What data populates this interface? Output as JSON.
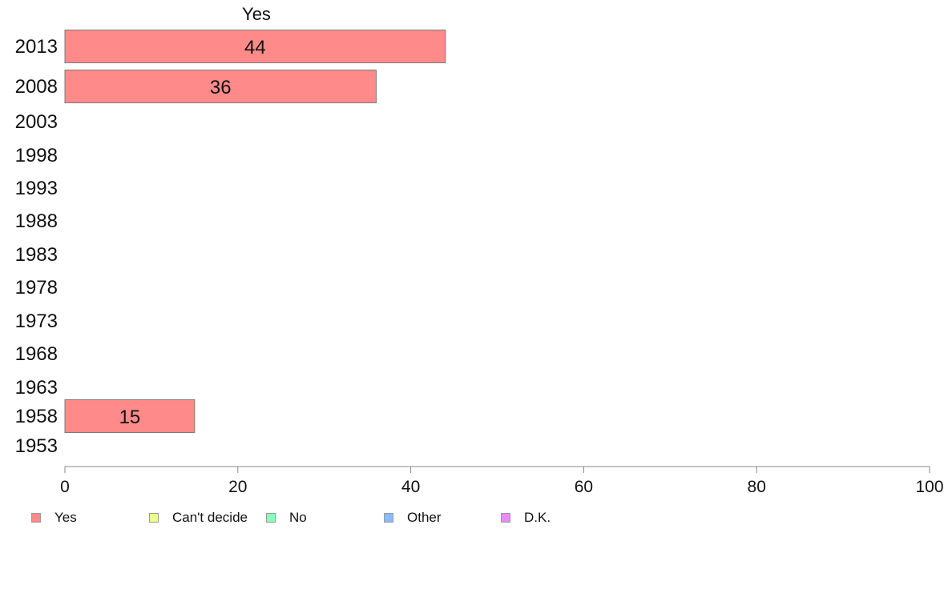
{
  "chart_data": {
    "type": "bar",
    "orientation": "horizontal",
    "title": "Yes",
    "categories": [
      "2013",
      "2008",
      "2003",
      "1998",
      "1993",
      "1988",
      "1983",
      "1978",
      "1973",
      "1968",
      "1963",
      "1958",
      "1953"
    ],
    "series": [
      {
        "name": "Yes",
        "color": "#ff8a8a",
        "values": [
          44,
          36,
          null,
          null,
          null,
          null,
          null,
          null,
          null,
          null,
          null,
          15,
          null
        ]
      }
    ],
    "data_labels": [
      "44",
      "36",
      "",
      "",
      "",
      "",
      "",
      "",
      "",
      "",
      "",
      "15",
      ""
    ],
    "xlim": [
      0,
      100
    ],
    "xticks": [
      "0",
      "20",
      "40",
      "60",
      "80",
      "100"
    ],
    "grid": false,
    "legend_position": "bottom-left"
  },
  "legend": [
    {
      "label": "Yes",
      "color": "#ff8a8a"
    },
    {
      "label": "Can't decide",
      "color": "#eeff88"
    },
    {
      "label": "No",
      "color": "#88ffbb"
    },
    {
      "label": "Other",
      "color": "#88bbff"
    },
    {
      "label": "D.K.",
      "color": "#ee88ff"
    }
  ]
}
